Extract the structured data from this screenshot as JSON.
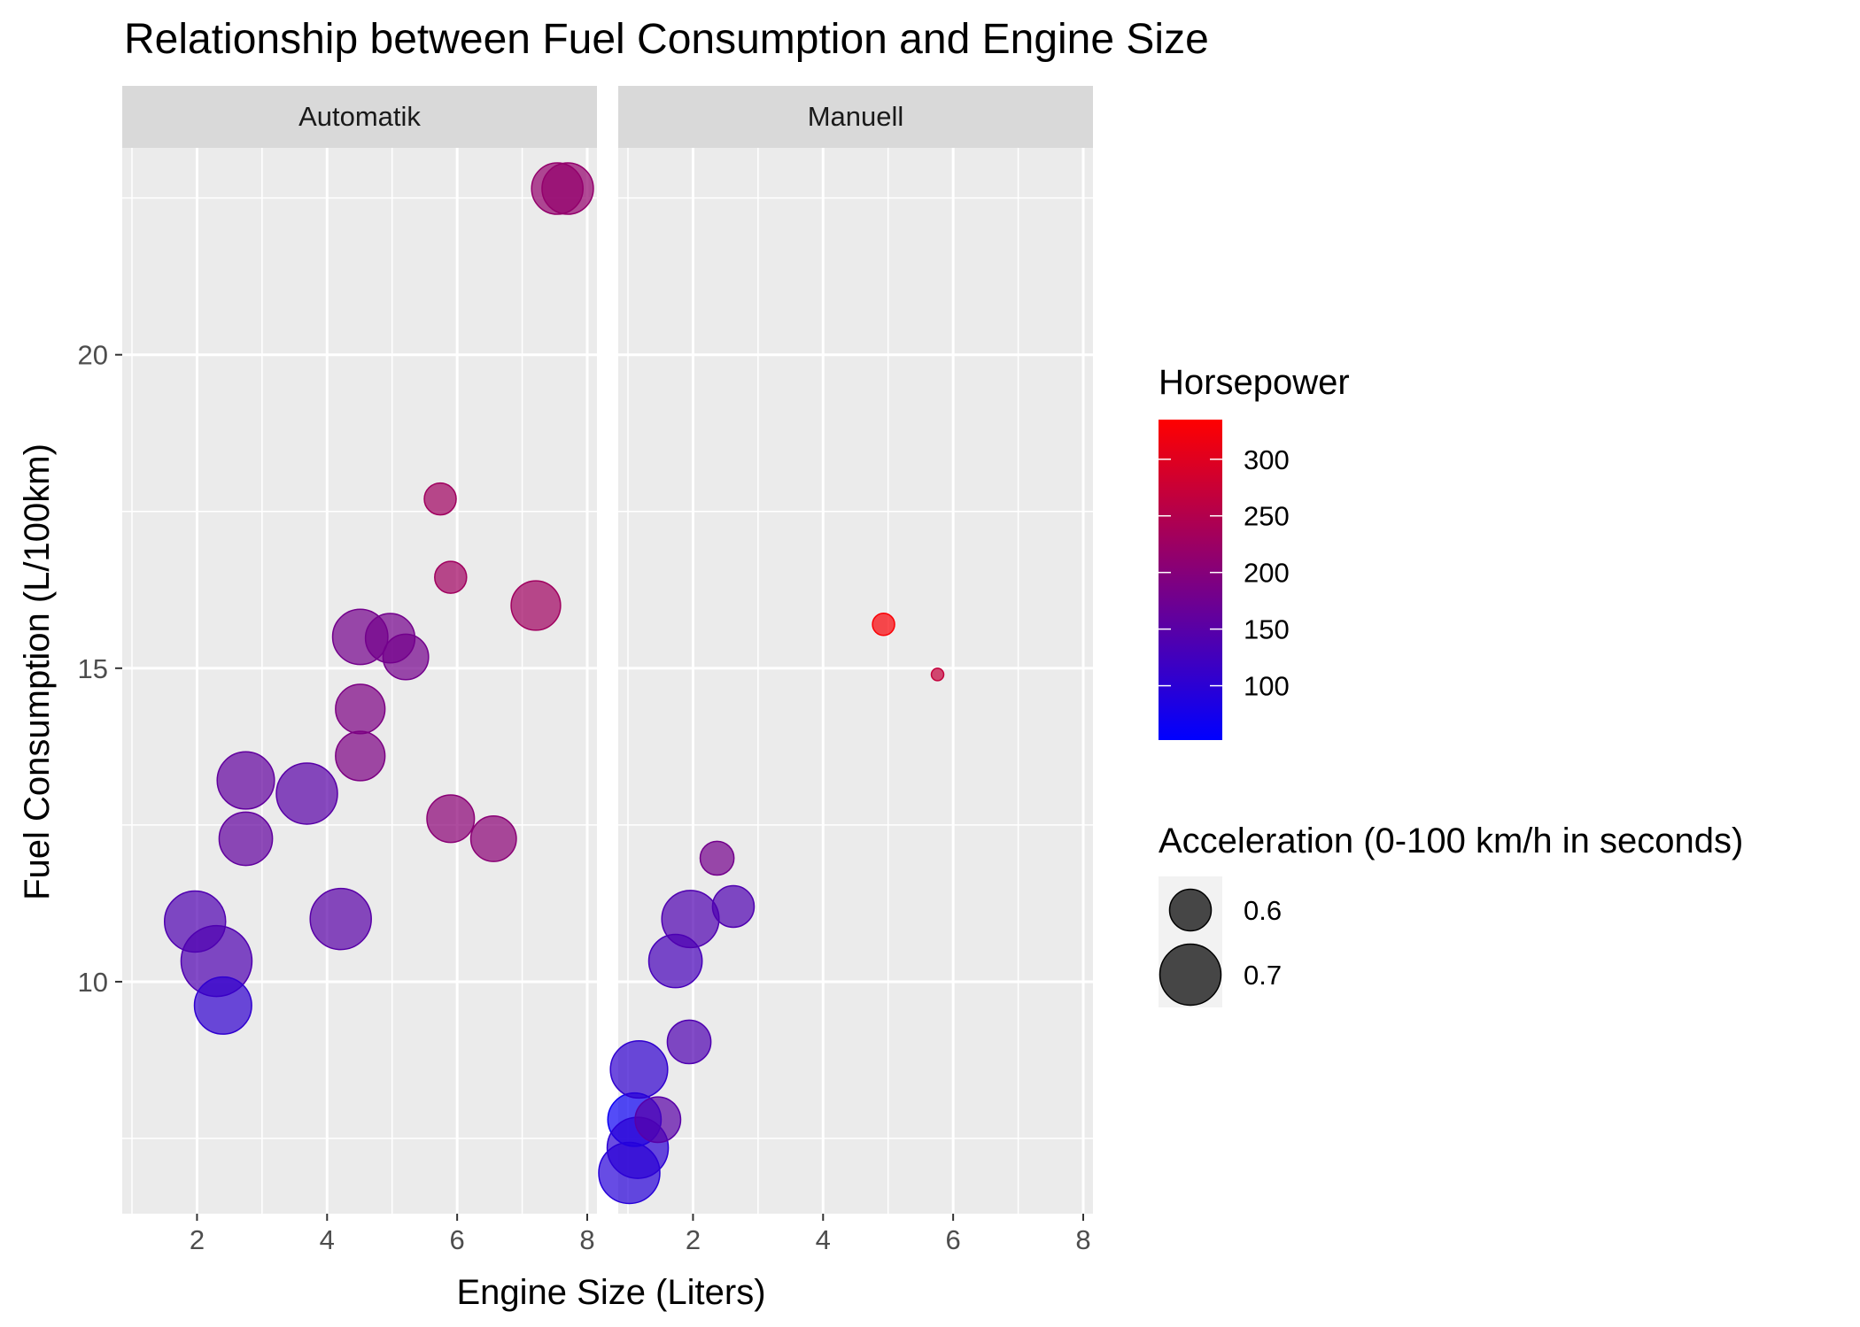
{
  "chart_data": {
    "type": "scatter",
    "title": "Relationship between Fuel Consumption and Engine Size",
    "xlabel": "Engine Size (Liters)",
    "ylabel": "Fuel Consumption (L/100km)",
    "xlim": [
      0.85,
      8.15
    ],
    "ylim": [
      6.3,
      23.3
    ],
    "xticks": [
      2,
      4,
      6,
      8
    ],
    "yticks": [
      10,
      15,
      20
    ],
    "grid": true,
    "panels": [
      {
        "label": "Automatik",
        "points": [
          {
            "x": 1.97,
            "y": 10.96,
            "hp": 140,
            "acc": 0.7
          },
          {
            "x": 2.3,
            "y": 10.33,
            "hp": 140,
            "acc": 0.75
          },
          {
            "x": 2.4,
            "y": 9.62,
            "hp": 105,
            "acc": 0.68
          },
          {
            "x": 2.75,
            "y": 13.21,
            "hp": 160,
            "acc": 0.68
          },
          {
            "x": 2.75,
            "y": 12.28,
            "hp": 160,
            "acc": 0.66
          },
          {
            "x": 3.69,
            "y": 13.0,
            "hp": 150,
            "acc": 0.7
          },
          {
            "x": 4.21,
            "y": 11.0,
            "hp": 150,
            "acc": 0.7
          },
          {
            "x": 4.51,
            "y": 15.5,
            "hp": 180,
            "acc": 0.67
          },
          {
            "x": 4.51,
            "y": 14.35,
            "hp": 190,
            "acc": 0.64
          },
          {
            "x": 4.51,
            "y": 13.6,
            "hp": 190,
            "acc": 0.64
          },
          {
            "x": 4.97,
            "y": 15.48,
            "hp": 180,
            "acc": 0.64
          },
          {
            "x": 5.21,
            "y": 15.18,
            "hp": 180,
            "acc": 0.62
          },
          {
            "x": 5.74,
            "y": 17.7,
            "hp": 230,
            "acc": 0.55
          },
          {
            "x": 5.9,
            "y": 16.45,
            "hp": 230,
            "acc": 0.55
          },
          {
            "x": 5.9,
            "y": 12.6,
            "hp": 205,
            "acc": 0.63
          },
          {
            "x": 6.56,
            "y": 12.28,
            "hp": 205,
            "acc": 0.62
          },
          {
            "x": 7.21,
            "y": 16.0,
            "hp": 230,
            "acc": 0.64
          },
          {
            "x": 7.54,
            "y": 22.65,
            "hp": 215,
            "acc": 0.65
          },
          {
            "x": 7.7,
            "y": 22.65,
            "hp": 215,
            "acc": 0.65
          }
        ]
      },
      {
        "label": "Manuell",
        "points": [
          {
            "x": 1.02,
            "y": 6.95,
            "hp": 95,
            "acc": 0.7
          },
          {
            "x": 1.1,
            "y": 7.8,
            "hp": 65,
            "acc": 0.66
          },
          {
            "x": 1.15,
            "y": 7.35,
            "hp": 100,
            "acc": 0.7
          },
          {
            "x": 1.17,
            "y": 8.6,
            "hp": 105,
            "acc": 0.68
          },
          {
            "x": 1.46,
            "y": 7.8,
            "hp": 150,
            "acc": 0.62
          },
          {
            "x": 1.73,
            "y": 10.33,
            "hp": 130,
            "acc": 0.66
          },
          {
            "x": 1.94,
            "y": 9.04,
            "hp": 140,
            "acc": 0.61
          },
          {
            "x": 1.96,
            "y": 11.0,
            "hp": 140,
            "acc": 0.68
          },
          {
            "x": 2.37,
            "y": 11.97,
            "hp": 180,
            "acc": 0.56
          },
          {
            "x": 2.62,
            "y": 11.2,
            "hp": 140,
            "acc": 0.6
          },
          {
            "x": 4.93,
            "y": 15.7,
            "hp": 330,
            "acc": 0.5
          },
          {
            "x": 5.76,
            "y": 14.9,
            "hp": 270,
            "acc": 0.45
          }
        ]
      }
    ],
    "legends": {
      "color": {
        "title": "Horsepower",
        "min": 52,
        "max": 335,
        "breaks": [
          100,
          150,
          200,
          250,
          300
        ],
        "breaks_labels": [
          "100",
          "150",
          "200",
          "250",
          "300"
        ],
        "low_color": "#0000FF",
        "high_color": "#FF0000"
      },
      "size": {
        "title": "Acceleration (0-100 km/h in seconds)",
        "breaks": [
          0.6,
          0.7
        ],
        "breaks_labels": [
          "0.6",
          "0.7"
        ],
        "color": "#333333"
      }
    },
    "colors": {
      "panel_background": "#EBEBEB",
      "grid": "#FFFFFF",
      "strip_background": "#D9D9D9",
      "tick": "#333333"
    }
  }
}
